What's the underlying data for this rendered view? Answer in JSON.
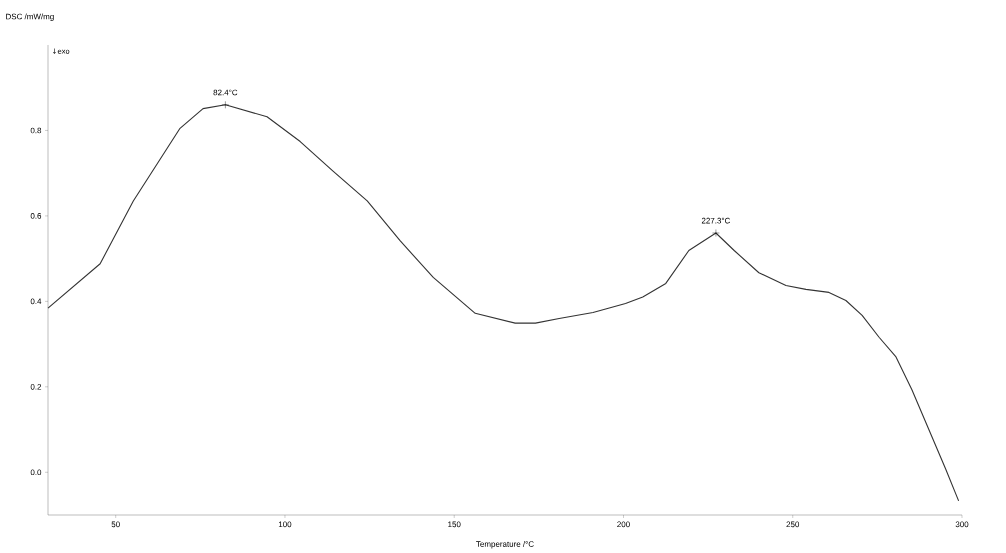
{
  "chart_data": {
    "type": "line",
    "xlabel": "Temperature /°C",
    "ylabel": "DSC /mW/mg",
    "color": "#333333",
    "marker": "none",
    "line_style": "solid",
    "grid": false,
    "x": [
      30,
      45.4,
      55.2,
      69,
      75.8,
      82.4,
      94.7,
      104.5,
      114.2,
      124.3,
      134,
      143.8,
      156.2,
      168,
      174,
      181,
      191,
      200.6,
      205.7,
      212.5,
      219.3,
      227.3,
      232.7,
      240,
      248,
      253.9,
      260.7,
      265.7,
      270.5,
      275.5,
      280.5,
      285.2,
      290.2,
      295.2,
      299
    ],
    "values": [
      0.384,
      0.488,
      0.635,
      0.805,
      0.851,
      0.86,
      0.832,
      0.774,
      0.705,
      0.635,
      0.542,
      0.456,
      0.372,
      0.349,
      0.349,
      0.36,
      0.374,
      0.395,
      0.41,
      0.442,
      0.519,
      0.56,
      0.519,
      0.467,
      0.437,
      0.428,
      0.421,
      0.402,
      0.367,
      0.316,
      0.27,
      0.193,
      0.1,
      0.007,
      -0.067
    ],
    "xlim": [
      30,
      300
    ],
    "ylim": [
      -0.1,
      1.0
    ],
    "xticks": [
      50,
      100,
      150,
      200,
      250,
      300
    ],
    "yticks": [
      {
        "value": 0,
        "label": "0.0"
      },
      {
        "value": 0.2,
        "label": "0.2"
      },
      {
        "value": 0.4,
        "label": "0.4"
      },
      {
        "value": 0.6,
        "label": "0.6"
      },
      {
        "value": 0.8,
        "label": "0.8"
      }
    ],
    "annotations": [
      {
        "text": "82.4°C",
        "x": 82.4,
        "y": 0.86
      },
      {
        "text": "227.3°C",
        "x": 227.3,
        "y": 0.56
      },
      "↓exo"
    ]
  }
}
